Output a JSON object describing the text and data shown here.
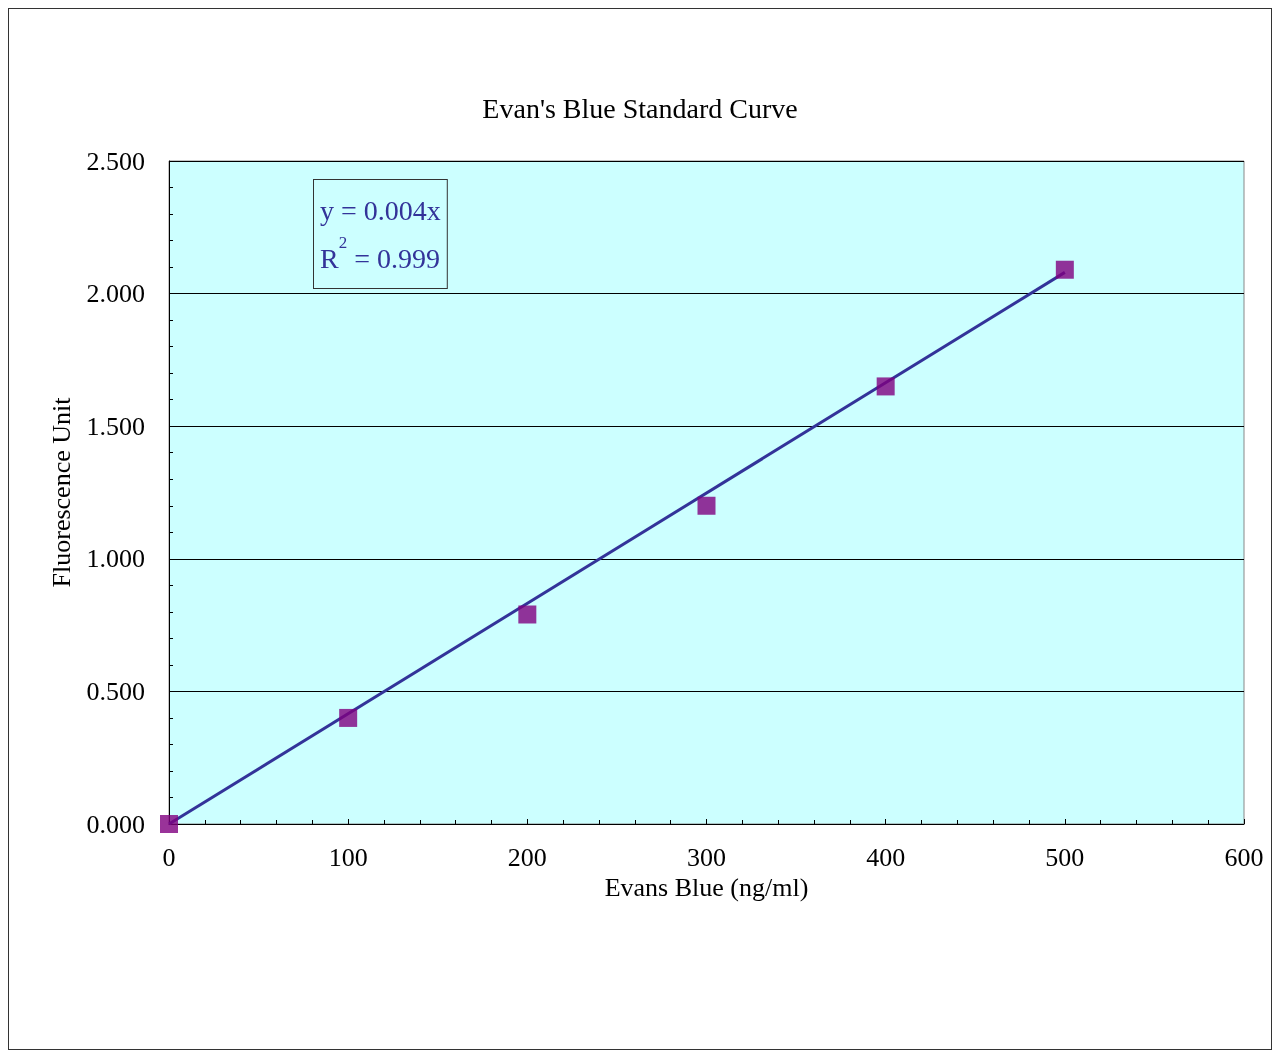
{
  "chart_data": {
    "type": "scatter",
    "title": "Evan's Blue Standard Curve",
    "xlabel": "Evans Blue (ng/ml)",
    "ylabel": "Fluorescence Unit",
    "annotations": [
      "y = 0.004x",
      "R$^{2}$ = 0.999"
    ],
    "series": [
      {
        "color": "#800080",
        "marker": "square",
        "x": [
          0,
          100,
          200,
          300,
          400,
          500
        ],
        "values": [
          0,
          0.4,
          0.79,
          1.2,
          1.65,
          2.09
        ]
      },
      {
        "type": "line",
        "color": "#333399",
        "marker": "none",
        "line_style": "solid",
        "x": [
          0,
          500
        ],
        "values": [
          0,
          2.08
        ]
      }
    ],
    "xlim": [
      0,
      600
    ],
    "xticks": [
      0,
      100,
      200,
      300,
      400,
      500,
      600
    ],
    "ylim": [
      0,
      2.5
    ],
    "yticks": [
      {
        "value": 0,
        "label": "0.000"
      },
      {
        "value": 0.5,
        "label": "0.500"
      },
      {
        "value": 1,
        "label": "1.000"
      },
      {
        "value": 1.5,
        "label": "1.500"
      },
      {
        "value": 2,
        "label": "2.000"
      },
      {
        "value": 2.5,
        "label": "2.500"
      }
    ],
    "grid": "y"
  }
}
